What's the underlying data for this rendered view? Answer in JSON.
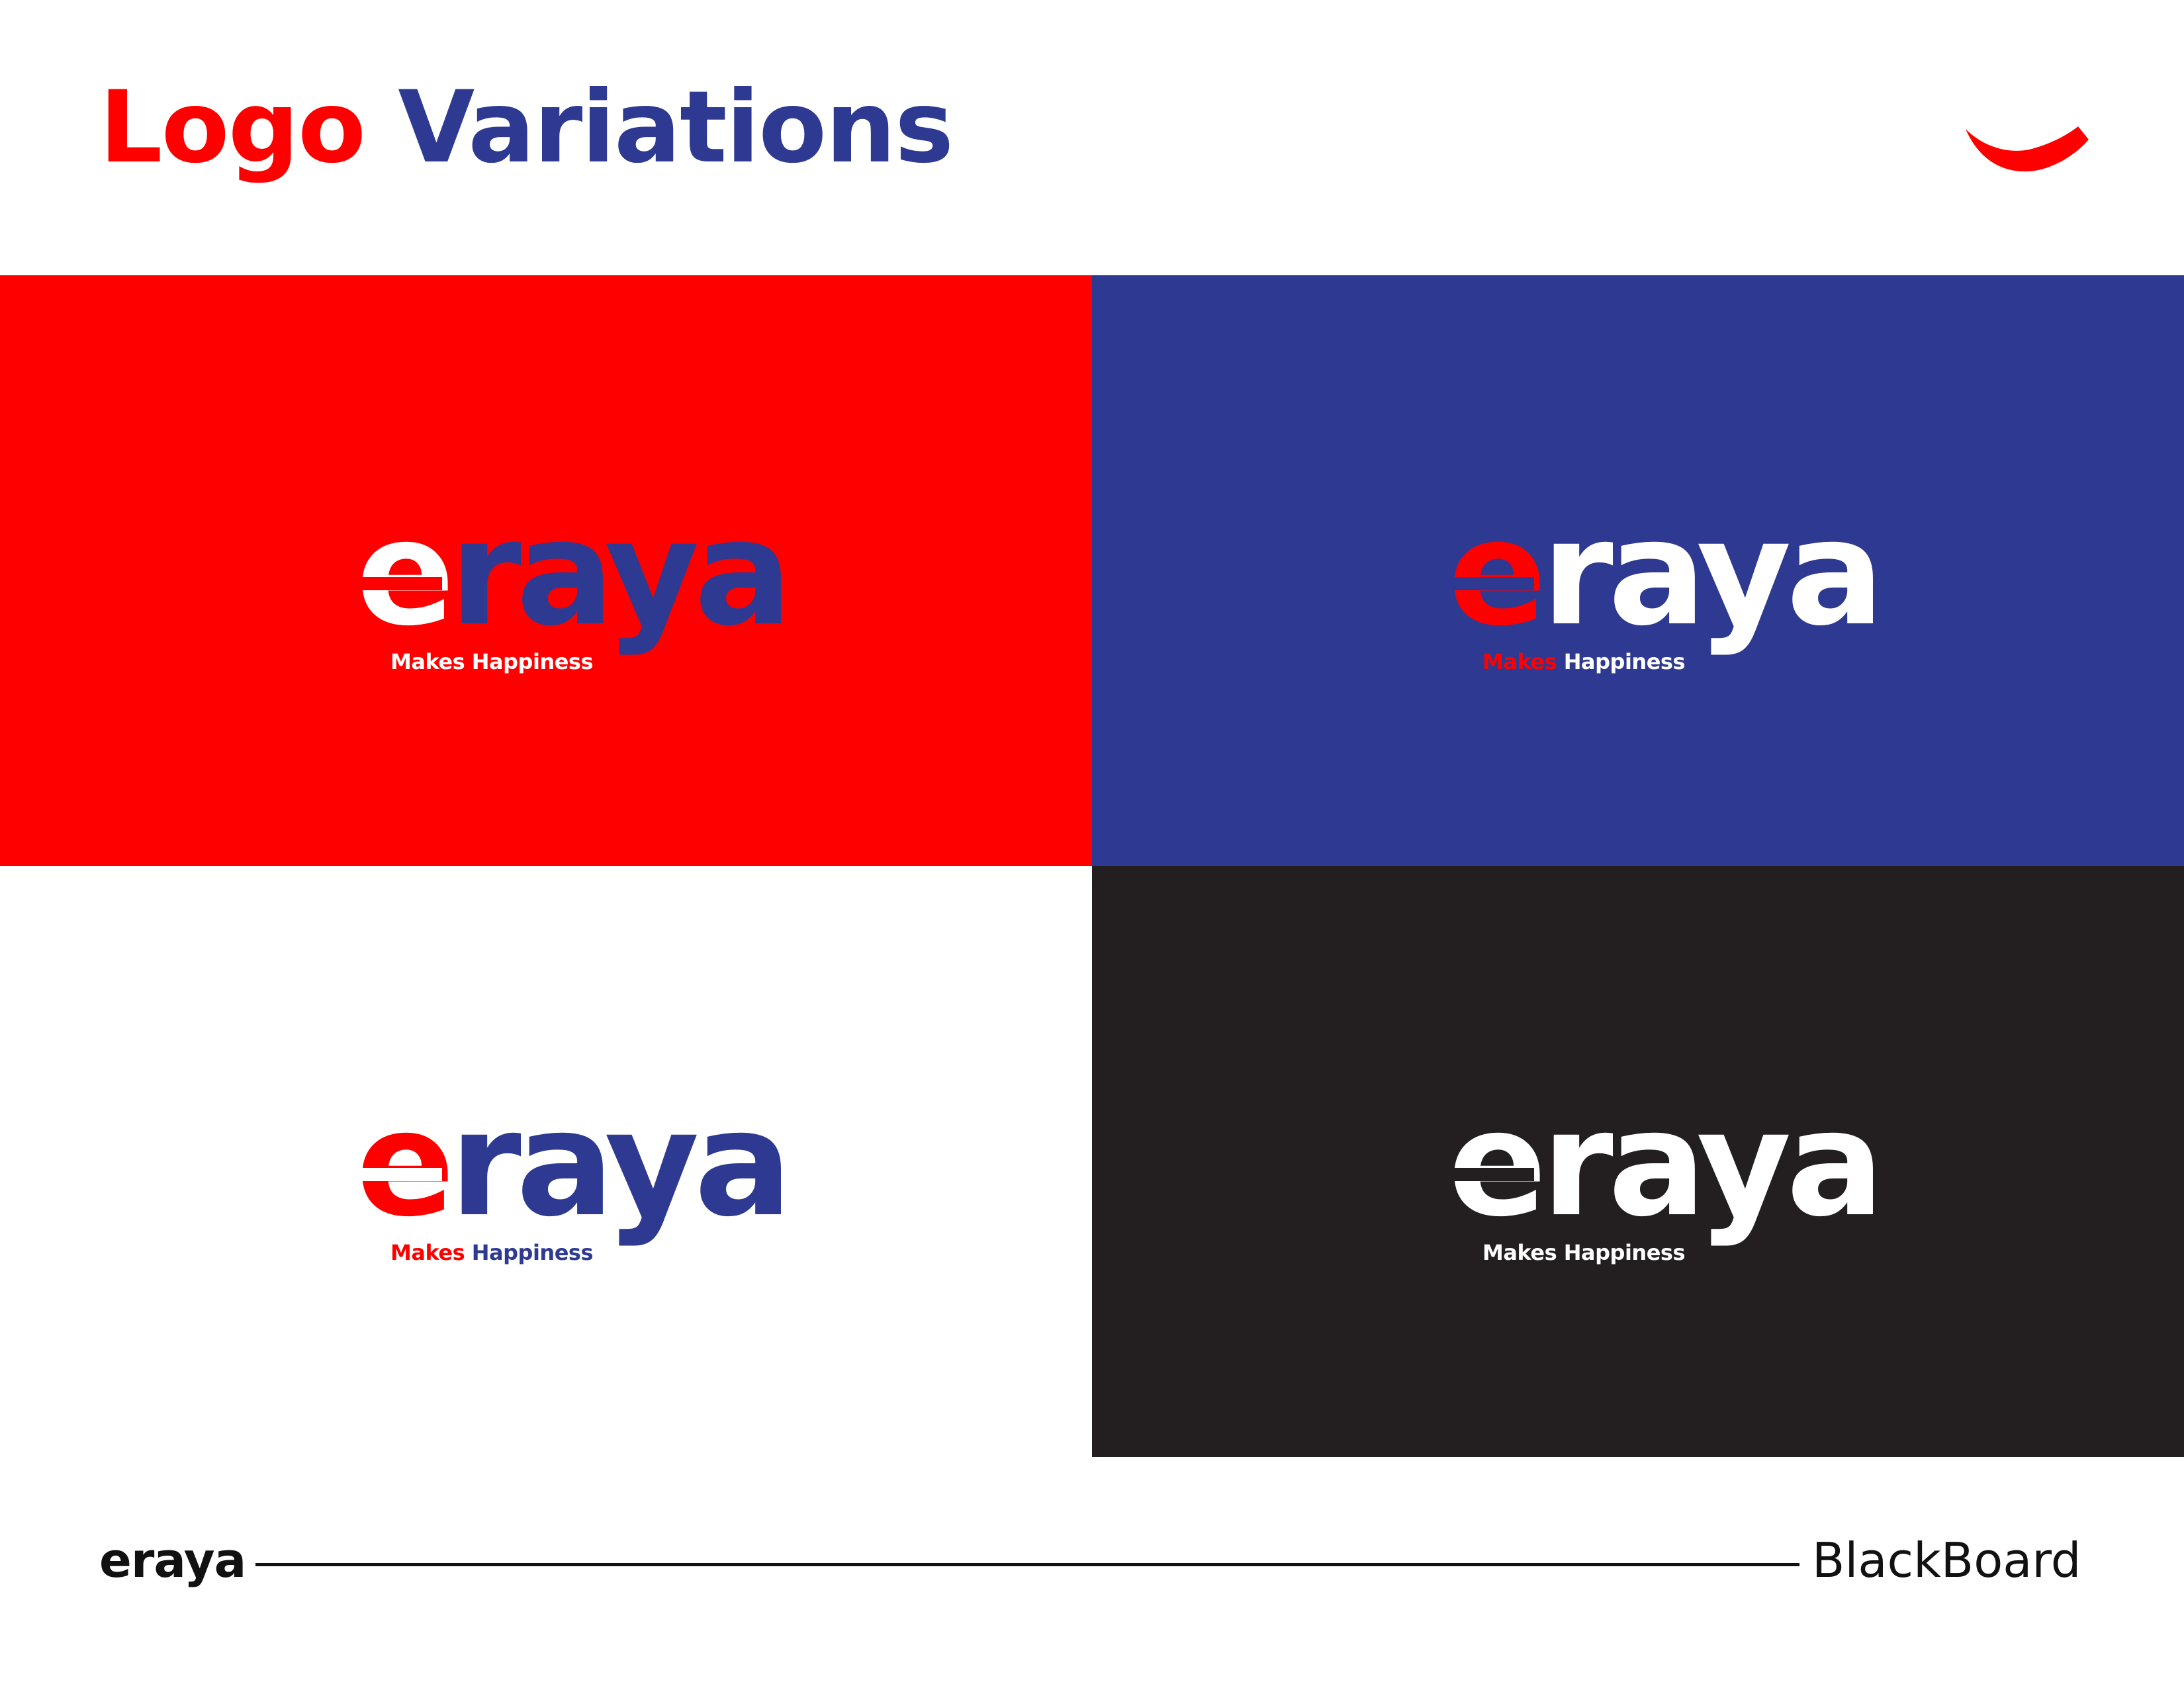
{
  "colors": {
    "red": "#ff0000",
    "blue": "#2e3a91",
    "dark": "#231f20",
    "white": "#ffffff"
  },
  "header": {
    "title_word1": "Logo",
    "title_word2": "Variations",
    "corner_icon": "smile-arc-icon"
  },
  "panels": [
    {
      "background": "#ff0000",
      "e_color": "#ffffff",
      "raya_color": "#2e3a91",
      "cut_color": "#ff0000",
      "wordmark_e": "e",
      "wordmark_rest": "raya",
      "tag_word1": "Makes",
      "tag_word2": "Happiness",
      "tag_color1": "#ffffff",
      "tag_color2": "#ffffff"
    },
    {
      "background": "#2e3a91",
      "e_color": "#ff0000",
      "raya_color": "#ffffff",
      "cut_color": "#2e3a91",
      "wordmark_e": "e",
      "wordmark_rest": "raya",
      "tag_word1": "Makes",
      "tag_word2": "Happiness",
      "tag_color1": "#ff0000",
      "tag_color2": "#ffffff"
    },
    {
      "background": "#ffffff",
      "e_color": "#ff0000",
      "raya_color": "#2e3a91",
      "cut_color": "#ffffff",
      "wordmark_e": "e",
      "wordmark_rest": "raya",
      "tag_word1": "Makes",
      "tag_word2": "Happiness",
      "tag_color1": "#ff0000",
      "tag_color2": "#2e3a91"
    },
    {
      "background": "#231f20",
      "e_color": "#ffffff",
      "raya_color": "#ffffff",
      "cut_color": "#231f20",
      "wordmark_e": "e",
      "wordmark_rest": "raya",
      "tag_word1": "Makes",
      "tag_word2": "Happiness",
      "tag_color1": "#ffffff",
      "tag_color2": "#ffffff"
    }
  ],
  "footer": {
    "brand": "eraya",
    "right_label": "BlackBoard"
  }
}
